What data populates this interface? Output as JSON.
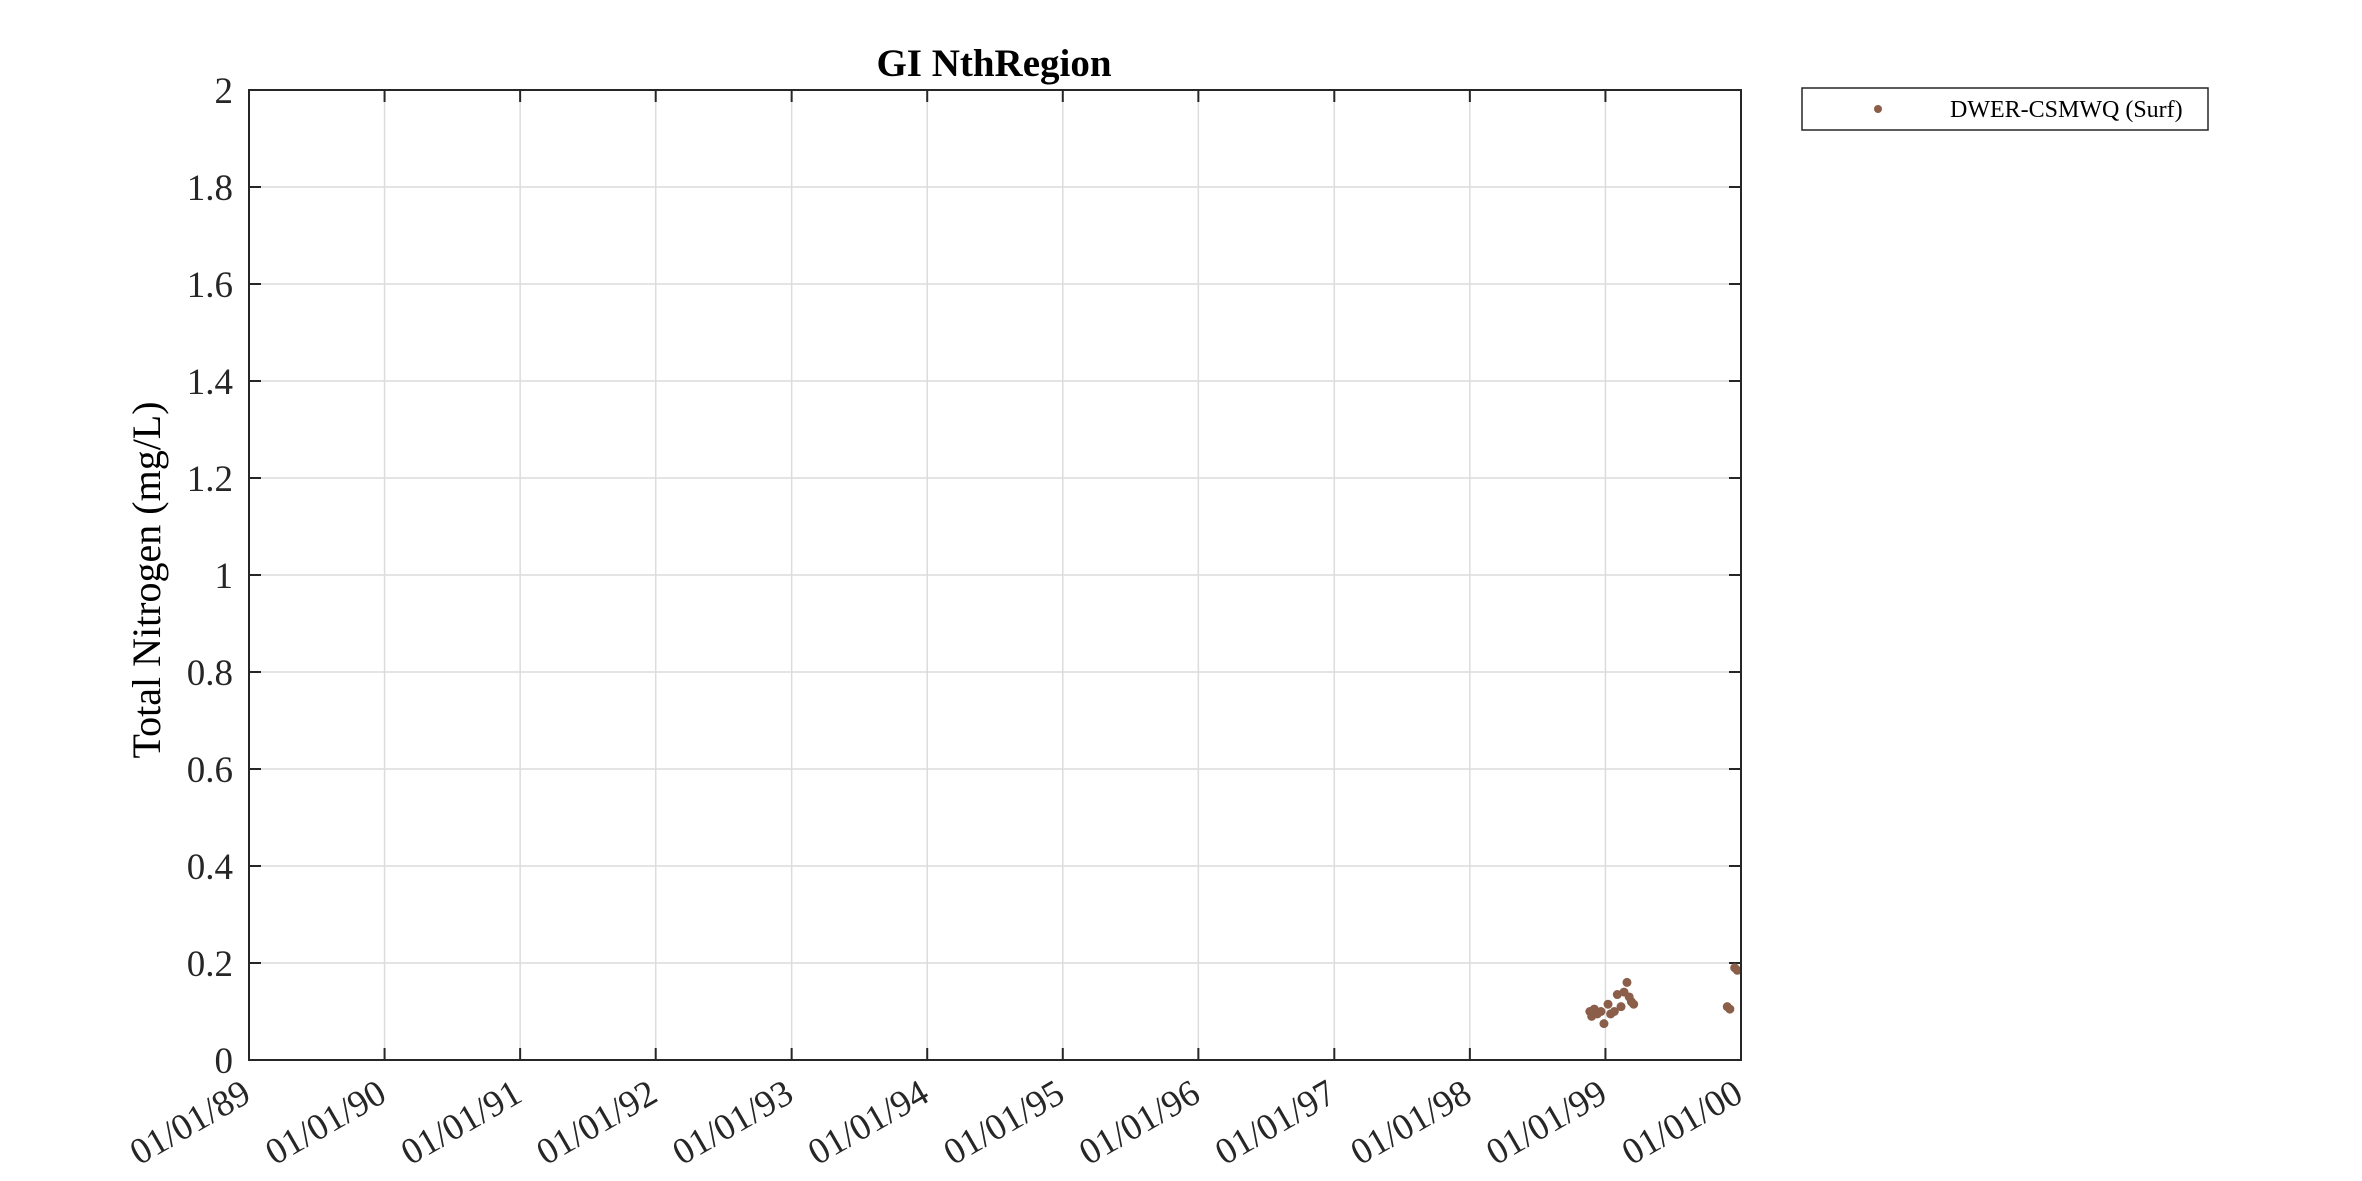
{
  "chart_data": {
    "type": "scatter",
    "title": "GI NthRegion",
    "xlabel": "",
    "ylabel": "Total Nitrogen (mg/L)",
    "xlim": [
      "1989-01-01",
      "2000-01-01"
    ],
    "ylim": [
      0,
      2
    ],
    "x_tick_labels": [
      "01/01/89",
      "01/01/90",
      "01/01/91",
      "01/01/92",
      "01/01/93",
      "01/01/94",
      "01/01/95",
      "01/01/96",
      "01/01/97",
      "01/01/98",
      "01/01/99",
      "01/01/00"
    ],
    "y_tick_labels": [
      "0",
      "0.2",
      "0.4",
      "0.6",
      "0.8",
      "1",
      "1.2",
      "1.4",
      "1.6",
      "1.8",
      "2"
    ],
    "grid": true,
    "legend_position": "outside-top-right",
    "series": [
      {
        "name": "DWER-CSMWQ (Surf)",
        "color": "#8b5e4a",
        "points": [
          {
            "x": "1998-11-20",
            "y": 0.1
          },
          {
            "x": "1998-11-25",
            "y": 0.09
          },
          {
            "x": "1998-12-02",
            "y": 0.105
          },
          {
            "x": "1998-12-10",
            "y": 0.095
          },
          {
            "x": "1998-12-20",
            "y": 0.1
          },
          {
            "x": "1998-12-28",
            "y": 0.075
          },
          {
            "x": "1999-01-08",
            "y": 0.115
          },
          {
            "x": "1999-01-15",
            "y": 0.095
          },
          {
            "x": "1999-01-25",
            "y": 0.1
          },
          {
            "x": "1999-02-02",
            "y": 0.135
          },
          {
            "x": "1999-02-12",
            "y": 0.11
          },
          {
            "x": "1999-02-20",
            "y": 0.14
          },
          {
            "x": "1999-02-28",
            "y": 0.16
          },
          {
            "x": "1999-03-06",
            "y": 0.13
          },
          {
            "x": "1999-03-12",
            "y": 0.12
          },
          {
            "x": "1999-03-18",
            "y": 0.115
          },
          {
            "x": "1999-11-25",
            "y": 0.11
          },
          {
            "x": "1999-12-02",
            "y": 0.105
          },
          {
            "x": "1999-12-15",
            "y": 0.19
          },
          {
            "x": "1999-12-22",
            "y": 0.185
          }
        ]
      }
    ]
  }
}
